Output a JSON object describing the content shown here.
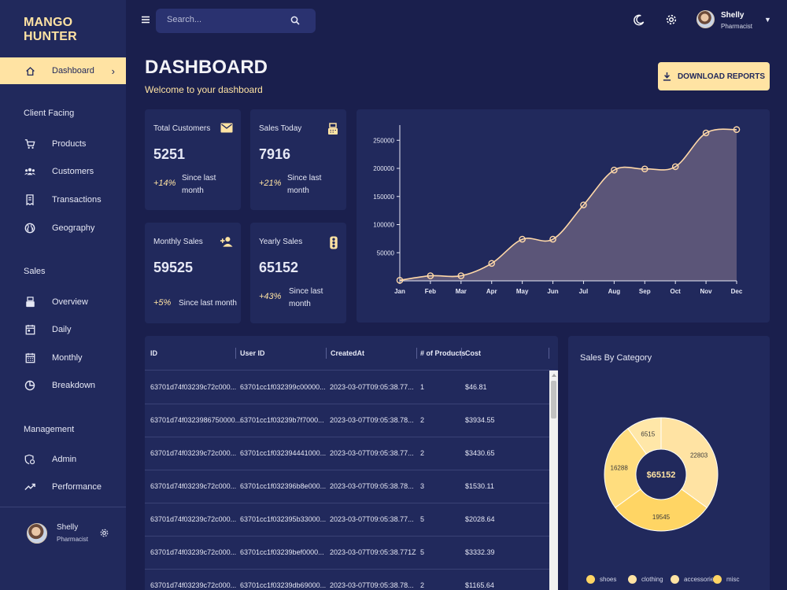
{
  "brand": "MANGO HUNTER",
  "search": {
    "placeholder": "Search..."
  },
  "user": {
    "name": "Shelly",
    "role": "Pharmacist"
  },
  "sidebar": {
    "dashboard": "Dashboard",
    "section_client": "Client Facing",
    "products": "Products",
    "customers": "Customers",
    "transactions": "Transactions",
    "geography": "Geography",
    "section_sales": "Sales",
    "overview": "Overview",
    "daily": "Daily",
    "monthly": "Monthly",
    "breakdown": "Breakdown",
    "section_management": "Management",
    "admin": "Admin",
    "performance": "Performance"
  },
  "header": {
    "title": "DASHBOARD",
    "subtitle": "Welcome to your dashboard",
    "download": "DOWNLOAD REPORTS"
  },
  "stats": {
    "total_customers": {
      "label": "Total Customers",
      "value": "5251",
      "increase": "+14%",
      "since": "Since last month"
    },
    "sales_today": {
      "label": "Sales Today",
      "value": "7916",
      "increase": "+21%",
      "since": "Since last month"
    },
    "monthly_sales": {
      "label": "Monthly Sales",
      "value": "59525",
      "increase": "+5%",
      "since": "Since last month"
    },
    "yearly_sales": {
      "label": "Yearly Sales",
      "value": "65152",
      "increase": "+43%",
      "since": "Since last month"
    }
  },
  "table": {
    "headers": [
      "ID",
      "User ID",
      "CreatedAt",
      "# of Products",
      "Cost"
    ],
    "rows": [
      [
        "63701d74f03239c72c000...",
        "63701cc1f032399c00000...",
        "2023-03-07T09:05:38.77...",
        "1",
        "$46.81"
      ],
      [
        "63701d74f0323986750000...",
        "63701cc1f03239b7f7000...",
        "2023-03-07T09:05:38.78...",
        "2",
        "$3934.55"
      ],
      [
        "63701d74f03239c72c000...",
        "63701cc1f032394441000...",
        "2023-03-07T09:05:38.77...",
        "2",
        "$3430.65"
      ],
      [
        "63701d74f03239c72c000...",
        "63701cc1f032396b8e000...",
        "2023-03-07T09:05:38.78...",
        "3",
        "$1530.11"
      ],
      [
        "63701d74f03239c72c000...",
        "63701cc1f032395b33000...",
        "2023-03-07T09:05:38.77...",
        "5",
        "$2028.64"
      ],
      [
        "63701d74f03239c72c000...",
        "63701cc1f03239bef0000...",
        "2023-03-07T09:05:38.771Z",
        "5",
        "$3332.39"
      ],
      [
        "63701d74f03239c72c000...",
        "63701cc1f03239db69000...",
        "2023-03-07T09:05:38.78...",
        "2",
        "$1165.64"
      ]
    ]
  },
  "pie": {
    "title": "Sales By Category",
    "total": "$65152",
    "slices": [
      {
        "name": "shoes",
        "value": 6515,
        "color": "#ffe7a8"
      },
      {
        "name": "clothing",
        "value": 22803,
        "color": "#ffe3a3"
      },
      {
        "name": "accessories",
        "value": 19545,
        "color": "#ffd564"
      },
      {
        "name": "misc",
        "value": 16288,
        "color": "#ffdd7e"
      }
    ],
    "legend": [
      "shoes",
      "clothing",
      "accessories",
      "misc"
    ]
  },
  "colors": {
    "background": "#1a1f4d",
    "panel": "#21295c",
    "accent": "#ffe3a3"
  },
  "chart_data": {
    "type": "area",
    "categories": [
      "Jan",
      "Feb",
      "Mar",
      "Apr",
      "May",
      "Jun",
      "Jul",
      "Aug",
      "Sep",
      "Oct",
      "Nov",
      "Dec"
    ],
    "values": [
      1000,
      9000,
      9000,
      31000,
      74000,
      74000,
      135000,
      197000,
      199000,
      203000,
      263000,
      269000
    ],
    "yticks": [
      50000,
      100000,
      150000,
      200000,
      250000
    ],
    "ylim": [
      0,
      270000
    ],
    "grid": false,
    "title": "",
    "xlabel": "",
    "ylabel": ""
  }
}
